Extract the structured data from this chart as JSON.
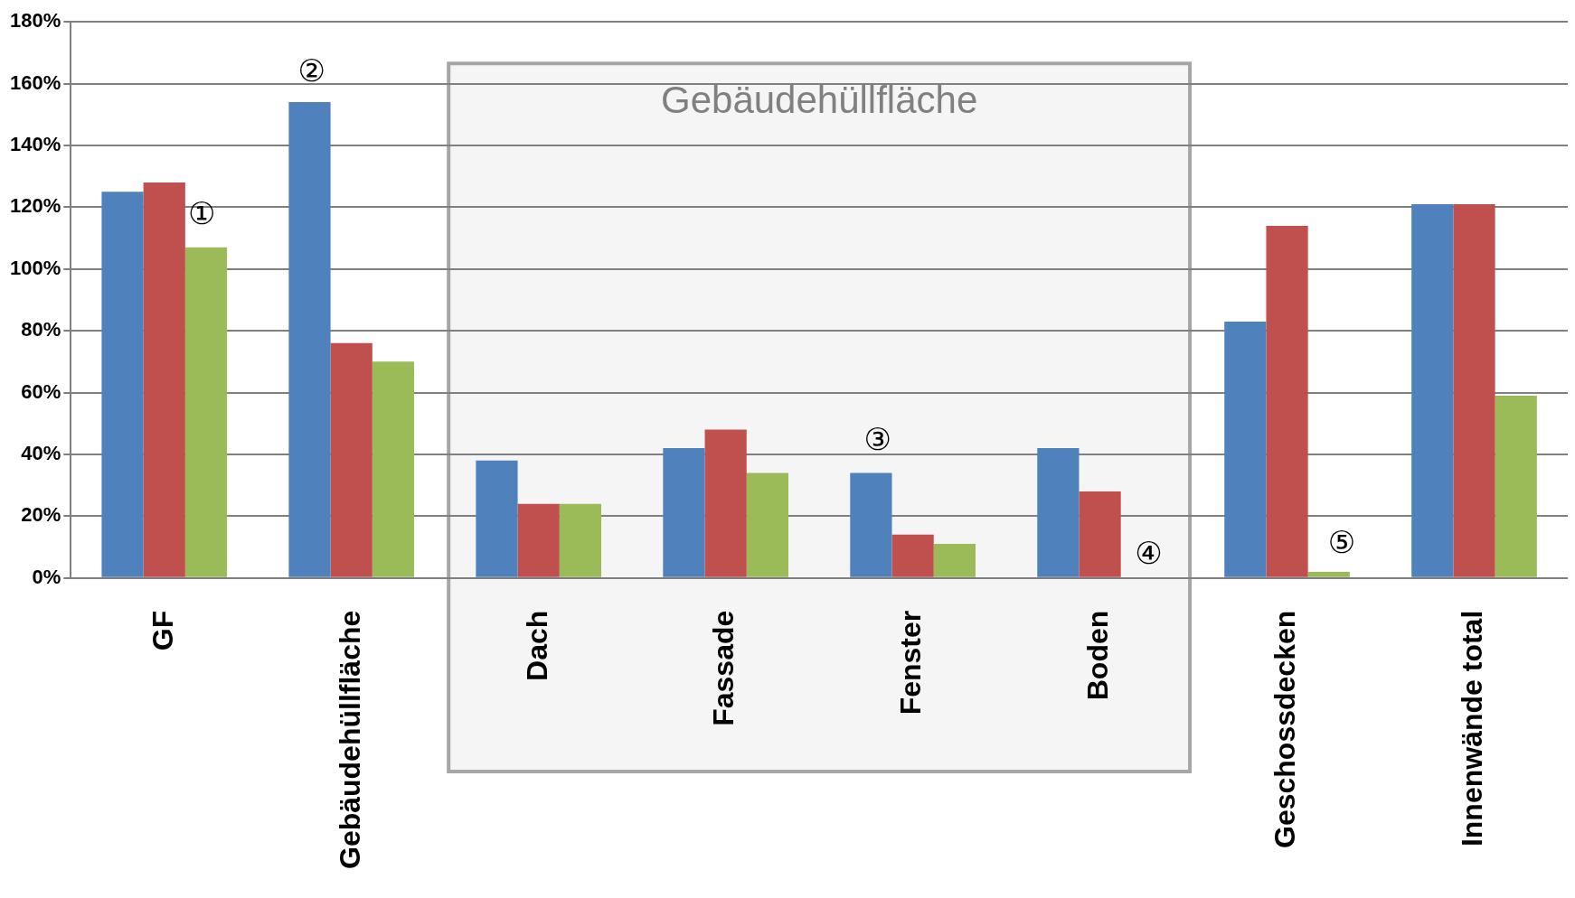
{
  "chart_data": {
    "type": "bar",
    "categories": [
      "GF",
      "Gebäudehüllfläche",
      "Dach",
      "Fassade",
      "Fenster",
      "Boden",
      "Geschossdecken",
      "Innenwände total"
    ],
    "series": [
      {
        "color": "#4f81bd",
        "values": [
          125,
          154,
          38,
          42,
          34,
          42,
          83,
          121
        ]
      },
      {
        "color": "#c0504d",
        "values": [
          128,
          76,
          24,
          48,
          14,
          28,
          114,
          121
        ]
      },
      {
        "color": "#9bbb59",
        "values": [
          107,
          70,
          24,
          34,
          11,
          0,
          2,
          59
        ]
      }
    ],
    "ylim": [
      0,
      180
    ],
    "yticks": [
      {
        "value": 0,
        "label": "0%"
      },
      {
        "value": 20,
        "label": "20%"
      },
      {
        "value": 40,
        "label": "40%"
      },
      {
        "value": 60,
        "label": "60%"
      },
      {
        "value": 80,
        "label": "80%"
      },
      {
        "value": 100,
        "label": "100%"
      },
      {
        "value": 120,
        "label": "120%"
      },
      {
        "value": 140,
        "label": "140%"
      },
      {
        "value": 160,
        "label": "160%"
      },
      {
        "value": 180,
        "label": "180%"
      }
    ],
    "grid": "y",
    "legend": false,
    "bands": [
      {
        "axis": "x",
        "from": "Dach",
        "to": "Boden",
        "label": "Gebäudehüllfläche",
        "color": "#f5f5f5"
      }
    ],
    "annotations": [
      "①",
      "②",
      "③",
      "④",
      "⑤"
    ]
  }
}
